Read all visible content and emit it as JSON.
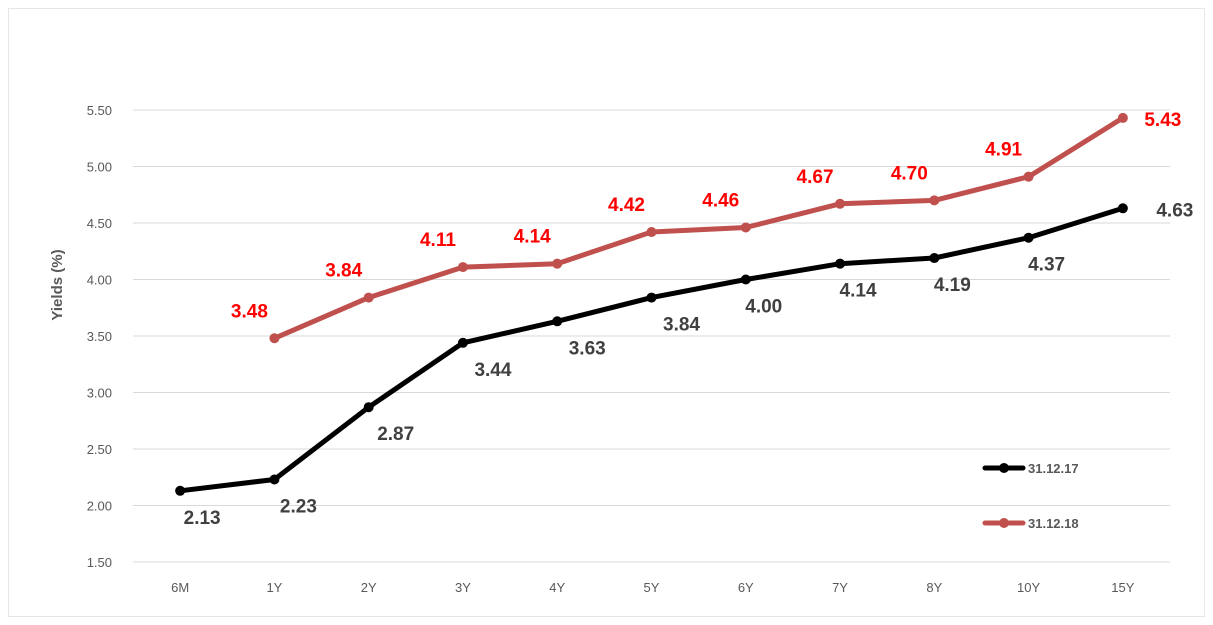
{
  "chart_data": {
    "type": "line",
    "ylabel": "Yields (%)",
    "xlabel": "",
    "title": "",
    "ylim": [
      1.5,
      5.5
    ],
    "yticks": [
      "1.50",
      "2.00",
      "2.50",
      "3.00",
      "3.50",
      "4.00",
      "4.50",
      "5.00",
      "5.50"
    ],
    "categories": [
      "6M",
      "1Y",
      "2Y",
      "3Y",
      "4Y",
      "5Y",
      "6Y",
      "7Y",
      "8Y",
      "10Y",
      "15Y"
    ],
    "grid": true,
    "legend_position": "bottom-right",
    "series": [
      {
        "name": "31.12.17",
        "color": "#000000",
        "label_color": "#404040",
        "values": [
          2.13,
          2.23,
          2.87,
          3.44,
          3.63,
          3.84,
          4.0,
          4.14,
          4.19,
          4.37,
          4.63
        ],
        "labels": [
          "2.13",
          "2.23",
          "2.87",
          "3.44",
          "3.63",
          "3.84",
          "4.00",
          "4.14",
          "4.19",
          "4.37",
          "4.63"
        ]
      },
      {
        "name": "31.12.18",
        "color": "#c0504d",
        "label_color": "#ff0000",
        "values": [
          null,
          3.48,
          3.84,
          4.11,
          4.14,
          4.42,
          4.46,
          4.67,
          4.7,
          4.91,
          5.43
        ],
        "labels": [
          "",
          "3.48",
          "3.84",
          "4.11",
          "4.14",
          "4.42",
          "4.46",
          "4.67",
          "4.70",
          "4.91",
          "5.43"
        ]
      }
    ]
  }
}
